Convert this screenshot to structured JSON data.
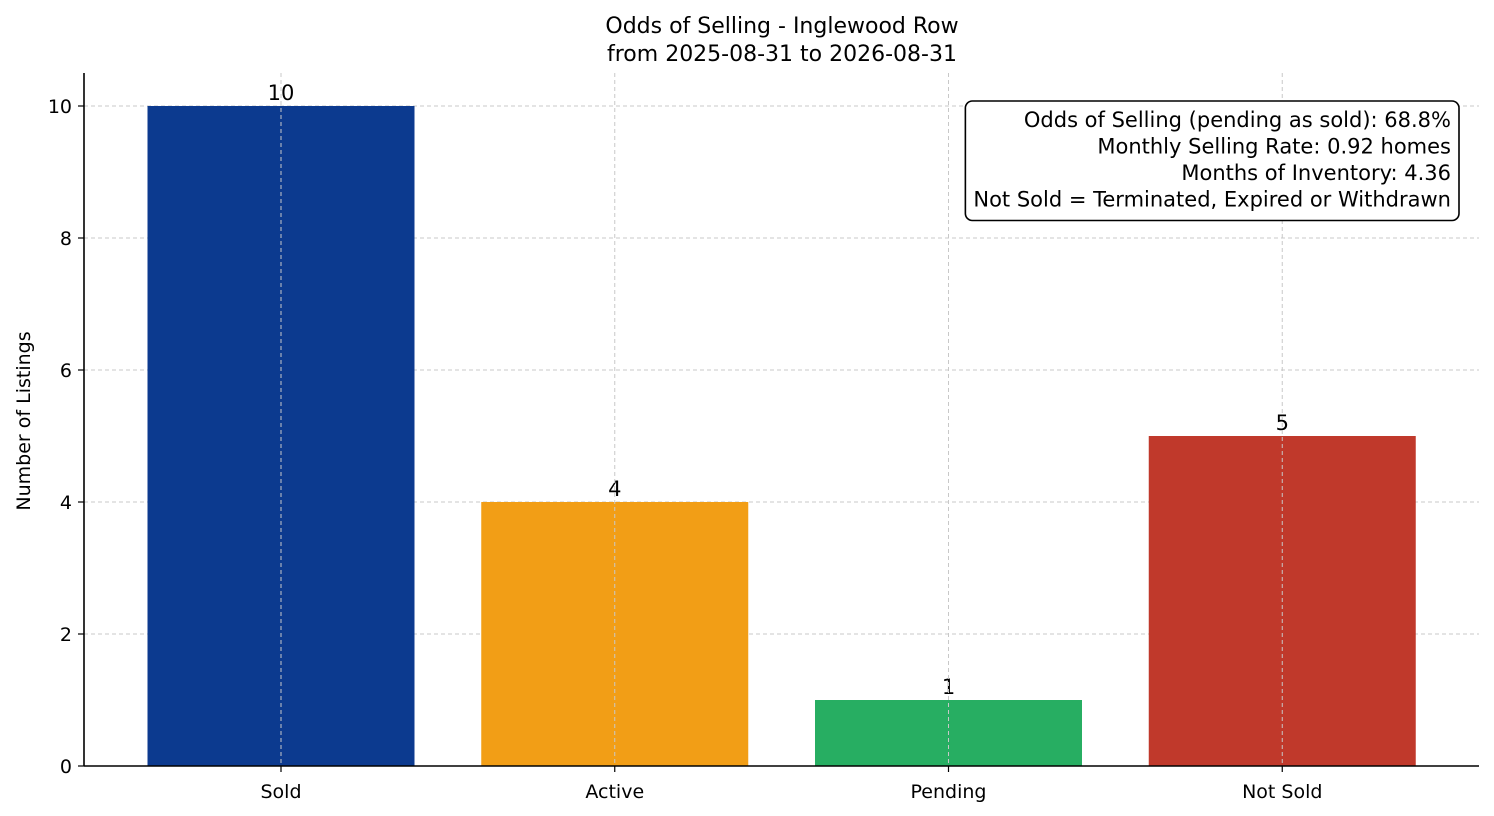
{
  "chart_data": {
    "type": "bar",
    "title": "Odds of Selling - Inglewood Row",
    "subtitle": "from 2025-08-31 to 2026-08-31",
    "xlabel": "",
    "ylabel": "Number of Listings",
    "categories": [
      "Sold",
      "Active",
      "Pending",
      "Not Sold"
    ],
    "values": [
      10,
      4,
      1,
      5
    ],
    "colors": [
      "#0c3a8f",
      "#f29e16",
      "#27ae62",
      "#c0392b"
    ],
    "ylim": [
      0,
      10.5
    ],
    "yticks": [
      0,
      2,
      4,
      6,
      8,
      10
    ],
    "grid": true,
    "annotation": {
      "position": "top-right",
      "lines": [
        "Odds of Selling (pending as sold): 68.8%",
        "Monthly Selling Rate: 0.92 homes",
        "Months of Inventory: 4.36",
        "Not Sold = Terminated, Expired or Withdrawn"
      ]
    }
  }
}
